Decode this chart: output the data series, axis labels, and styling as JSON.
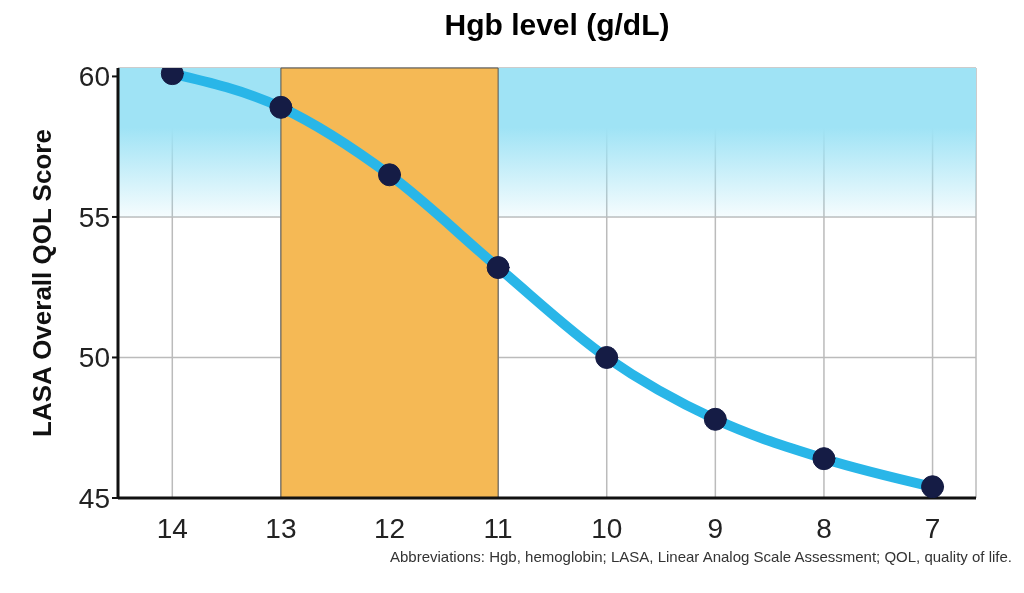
{
  "chart_data": {
    "type": "line",
    "xlabel": "Hgb level (g/dL)",
    "ylabel": "LASA Overall QOL Score",
    "x": [
      14,
      13,
      12,
      11,
      10,
      9,
      8,
      7
    ],
    "series": [
      {
        "color": "#29b6e8",
        "values": [
          60.1,
          58.9,
          56.5,
          53.2,
          50.0,
          47.8,
          46.4,
          45.4
        ]
      }
    ],
    "xlim": [
      14.5,
      6.6
    ],
    "xticks": [
      14,
      13,
      12,
      11,
      10,
      9,
      8,
      7
    ],
    "ylim": [
      45,
      60.3
    ],
    "yticks": [
      45,
      50,
      55,
      60
    ],
    "grid": true,
    "marker": "circle",
    "line_style": "solid",
    "legend": false,
    "bands": [
      {
        "axis": "x",
        "from": 13,
        "to": 11,
        "color": "#f5b955"
      },
      {
        "axis": "y",
        "from": 55,
        "to": 60.3,
        "color": "#9fe3f5"
      }
    ],
    "annotations": [
      "Abbreviations: Hgb, hemoglobin; LASA, Linear Analog Scale Assessment; QOL, quality of life."
    ]
  }
}
